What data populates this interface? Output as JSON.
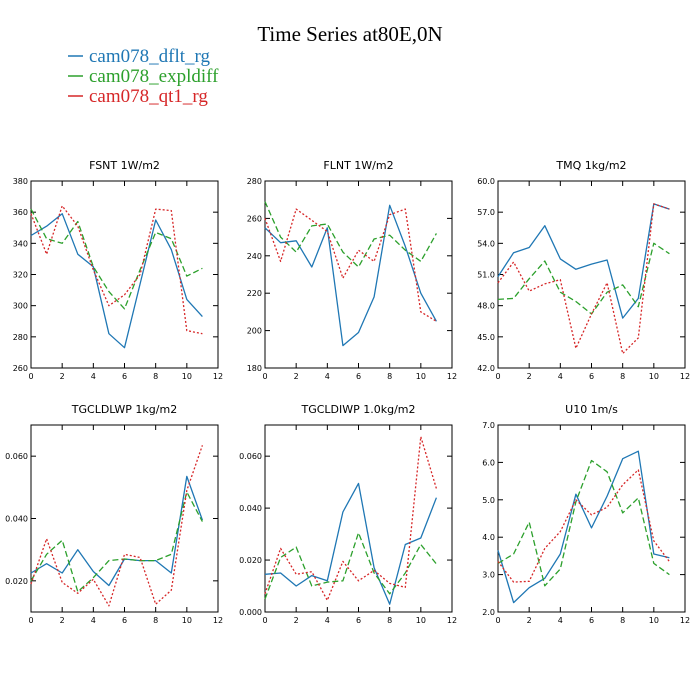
{
  "figure": {
    "title": "Time Series at80E,0N",
    "legend": [
      {
        "name": "cam078_dflt_rg",
        "color": "#1f77b4",
        "dash": "solid"
      },
      {
        "name": "cam078_expldiff",
        "color": "#2ca02c",
        "dash": "dashed"
      },
      {
        "name": "cam078_qt1_rg",
        "color": "#d62728",
        "dash": "dotted"
      }
    ]
  },
  "chart_data": [
    {
      "type": "line",
      "title": "FSNT   1W/m2",
      "x": [
        0,
        1,
        2,
        3,
        4,
        5,
        6,
        7,
        8,
        9,
        10,
        11
      ],
      "xlim": [
        0,
        12
      ],
      "xticks": [
        0,
        2,
        4,
        6,
        8,
        10,
        12
      ],
      "xtick_labels": [
        "0",
        "2",
        "4",
        "6",
        "8",
        "10",
        "12"
      ],
      "ylim": [
        260,
        380
      ],
      "yticks": [
        260,
        280,
        300,
        320,
        340,
        360,
        380
      ],
      "ytick_labels": [
        "260",
        "280",
        "300",
        "320",
        "340",
        "360",
        "380"
      ],
      "series": [
        {
          "name": "cam078_dflt_rg",
          "values": [
            345,
            351,
            359,
            333,
            325,
            282,
            273,
            314,
            355,
            336,
            304,
            293
          ]
        },
        {
          "name": "cam078_expldiff",
          "values": [
            362,
            343,
            340,
            354,
            325,
            309,
            298,
            323,
            347,
            343,
            319,
            324
          ]
        },
        {
          "name": "cam078_qt1_rg",
          "values": [
            359,
            333,
            364,
            351,
            323,
            300,
            307,
            320,
            362,
            361,
            284,
            282
          ]
        }
      ]
    },
    {
      "type": "line",
      "title": "FLNT   1W/m2",
      "x": [
        0,
        1,
        2,
        3,
        4,
        5,
        6,
        7,
        8,
        9,
        10,
        11
      ],
      "xlim": [
        0,
        12
      ],
      "xticks": [
        0,
        2,
        4,
        6,
        8,
        10,
        12
      ],
      "xtick_labels": [
        "0",
        "2",
        "4",
        "6",
        "8",
        "10",
        "12"
      ],
      "ylim": [
        180,
        280
      ],
      "yticks": [
        180,
        200,
        220,
        240,
        260,
        280
      ],
      "ytick_labels": [
        "180",
        "200",
        "220",
        "240",
        "260",
        "280"
      ],
      "series": [
        {
          "name": "cam078_dflt_rg",
          "values": [
            255,
            247,
            248,
            234,
            255,
            192,
            199,
            218,
            267,
            245,
            220,
            205
          ]
        },
        {
          "name": "cam078_expldiff",
          "values": [
            269,
            250,
            242,
            256,
            257,
            242,
            234,
            249,
            251,
            243,
            237,
            252
          ]
        },
        {
          "name": "cam078_qt1_rg",
          "values": [
            260,
            237,
            265,
            259,
            253,
            228,
            243,
            237,
            262,
            265,
            210,
            205
          ]
        }
      ]
    },
    {
      "type": "line",
      "title": "TMQ   1kg/m2",
      "x": [
        0,
        1,
        2,
        3,
        4,
        5,
        6,
        7,
        8,
        9,
        10,
        11
      ],
      "xlim": [
        0,
        12
      ],
      "xticks": [
        0,
        2,
        4,
        6,
        8,
        10,
        12
      ],
      "xtick_labels": [
        "0",
        "2",
        "4",
        "6",
        "8",
        "10",
        "12"
      ],
      "ylim": [
        42,
        60
      ],
      "yticks": [
        42,
        45,
        48,
        51,
        54,
        57,
        60
      ],
      "ytick_labels": [
        "42.0",
        "45.0",
        "48.0",
        "51.0",
        "54.0",
        "57.0",
        "60.0"
      ],
      "series": [
        {
          "name": "cam078_dflt_rg",
          "values": [
            50.8,
            53.1,
            53.6,
            55.7,
            52.5,
            51.5,
            52.0,
            52.4,
            46.8,
            48.7,
            57.8,
            57.3
          ]
        },
        {
          "name": "cam078_expldiff",
          "values": [
            48.6,
            48.7,
            50.6,
            52.3,
            49.3,
            48.4,
            47.2,
            49.3,
            50.0,
            47.9,
            54.0,
            53.0
          ]
        },
        {
          "name": "cam078_qt1_rg",
          "values": [
            50.2,
            52.2,
            49.4,
            50.1,
            50.5,
            43.9,
            47.2,
            50.2,
            43.4,
            44.9,
            57.8,
            57.3
          ]
        }
      ]
    },
    {
      "type": "line",
      "title": "TGCLDLWP   1kg/m2",
      "x": [
        0,
        1,
        2,
        3,
        4,
        5,
        6,
        7,
        8,
        9,
        10,
        11
      ],
      "xlim": [
        0,
        12
      ],
      "xticks": [
        0,
        2,
        4,
        6,
        8,
        10,
        12
      ],
      "xtick_labels": [
        "0",
        "2",
        "4",
        "6",
        "8",
        "10",
        "12"
      ],
      "ylim": [
        0.01,
        0.07
      ],
      "yticks": [
        0.02,
        0.04,
        0.06
      ],
      "ytick_labels": [
        "0.020",
        "0.040",
        "0.060"
      ],
      "series": [
        {
          "name": "cam078_dflt_rg",
          "values": [
            0.0225,
            0.0255,
            0.0225,
            0.03,
            0.023,
            0.0185,
            0.027,
            0.0265,
            0.0265,
            0.0225,
            0.0535,
            0.0395
          ]
        },
        {
          "name": "cam078_expldiff",
          "values": [
            0.02,
            0.0285,
            0.033,
            0.0165,
            0.021,
            0.0265,
            0.027,
            0.0265,
            0.0265,
            0.0285,
            0.0485,
            0.039
          ]
        },
        {
          "name": "cam078_qt1_rg",
          "values": [
            0.019,
            0.0335,
            0.0195,
            0.016,
            0.0205,
            0.012,
            0.0285,
            0.0275,
            0.0125,
            0.017,
            0.049,
            0.0635
          ]
        }
      ]
    },
    {
      "type": "line",
      "title": "TGCLDIWP   1.0kg/m2",
      "x": [
        0,
        1,
        2,
        3,
        4,
        5,
        6,
        7,
        8,
        9,
        10,
        11
      ],
      "xlim": [
        0,
        12
      ],
      "xticks": [
        0,
        2,
        4,
        6,
        8,
        10,
        12
      ],
      "xtick_labels": [
        "0",
        "2",
        "4",
        "6",
        "8",
        "10",
        "12"
      ],
      "ylim": [
        0.0,
        0.072
      ],
      "yticks": [
        0.0,
        0.02,
        0.04,
        0.06
      ],
      "ytick_labels": [
        "0.000",
        "0.020",
        "0.040",
        "0.060"
      ],
      "series": [
        {
          "name": "cam078_dflt_rg",
          "values": [
            0.0145,
            0.015,
            0.01,
            0.014,
            0.012,
            0.0385,
            0.0495,
            0.017,
            0.003,
            0.026,
            0.0285,
            0.044
          ]
        },
        {
          "name": "cam078_expldiff",
          "values": [
            0.005,
            0.021,
            0.025,
            0.01,
            0.0115,
            0.012,
            0.0305,
            0.015,
            0.007,
            0.015,
            0.026,
            0.0185
          ]
        },
        {
          "name": "cam078_qt1_rg",
          "values": [
            0.007,
            0.0245,
            0.0145,
            0.0155,
            0.0045,
            0.0195,
            0.012,
            0.016,
            0.011,
            0.0095,
            0.0675,
            0.0475
          ]
        }
      ]
    },
    {
      "type": "line",
      "title": "U10   1m/s",
      "x": [
        0,
        1,
        2,
        3,
        4,
        5,
        6,
        7,
        8,
        9,
        10,
        11
      ],
      "xlim": [
        0,
        12
      ],
      "xticks": [
        0,
        2,
        4,
        6,
        8,
        10,
        12
      ],
      "xtick_labels": [
        "0",
        "2",
        "4",
        "6",
        "8",
        "10",
        "12"
      ],
      "ylim": [
        2.0,
        7.0
      ],
      "yticks": [
        2,
        3,
        4,
        5,
        6,
        7
      ],
      "ytick_labels": [
        "2.0",
        "3.0",
        "4.0",
        "5.0",
        "6.0",
        "7.0"
      ],
      "series": [
        {
          "name": "cam078_dflt_rg",
          "values": [
            3.65,
            2.25,
            2.65,
            2.9,
            3.55,
            5.15,
            4.25,
            5.1,
            6.1,
            6.3,
            3.55,
            3.45
          ]
        },
        {
          "name": "cam078_expldiff",
          "values": [
            3.3,
            3.55,
            4.4,
            2.7,
            3.15,
            4.95,
            6.05,
            5.75,
            4.65,
            5.05,
            3.3,
            3.0
          ]
        },
        {
          "name": "cam078_qt1_rg",
          "values": [
            3.35,
            2.8,
            2.82,
            3.7,
            4.15,
            5.0,
            4.6,
            4.8,
            5.4,
            5.8,
            3.9,
            3.35
          ]
        }
      ]
    }
  ]
}
